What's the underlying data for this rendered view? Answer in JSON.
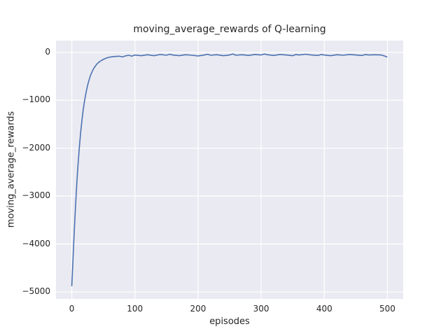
{
  "chart_data": {
    "type": "line",
    "title": "moving_average_rewards of Q-learning",
    "xlabel": "episodes",
    "ylabel": "moving_average_rewards",
    "xlim": [
      -25,
      525
    ],
    "ylim": [
      -5145,
      245
    ],
    "x_ticks": [
      0,
      100,
      200,
      300,
      400,
      500
    ],
    "y_ticks": [
      0,
      -1000,
      -2000,
      -3000,
      -4000,
      -5000
    ],
    "grid": true,
    "legend_position": "none",
    "colors": {
      "figure_background": "#ffffff",
      "plot_background": "#eaeaf2",
      "grid": "#ffffff",
      "line": "#4c72b0",
      "text": "#262626"
    },
    "series": [
      {
        "name": "moving_average_rewards",
        "color": "#4c72b0",
        "points": [
          [
            0,
            -4870
          ],
          [
            1,
            -4600
          ],
          [
            2,
            -4300
          ],
          [
            3,
            -4000
          ],
          [
            4,
            -3720
          ],
          [
            5,
            -3450
          ],
          [
            6,
            -3200
          ],
          [
            7,
            -2960
          ],
          [
            8,
            -2730
          ],
          [
            9,
            -2520
          ],
          [
            10,
            -2330
          ],
          [
            12,
            -1980
          ],
          [
            14,
            -1680
          ],
          [
            16,
            -1430
          ],
          [
            18,
            -1210
          ],
          [
            20,
            -1030
          ],
          [
            22,
            -880
          ],
          [
            24,
            -750
          ],
          [
            26,
            -640
          ],
          [
            28,
            -550
          ],
          [
            30,
            -470
          ],
          [
            33,
            -380
          ],
          [
            36,
            -310
          ],
          [
            40,
            -240
          ],
          [
            44,
            -195
          ],
          [
            48,
            -160
          ],
          [
            52,
            -135
          ],
          [
            56,
            -115
          ],
          [
            60,
            -100
          ],
          [
            65,
            -90
          ],
          [
            70,
            -85
          ],
          [
            75,
            -80
          ],
          [
            80,
            -95
          ],
          [
            85,
            -75
          ],
          [
            90,
            -60
          ],
          [
            95,
            -80
          ],
          [
            100,
            -55
          ],
          [
            110,
            -70
          ],
          [
            120,
            -50
          ],
          [
            130,
            -70
          ],
          [
            140,
            -45
          ],
          [
            150,
            -60
          ],
          [
            155,
            -40
          ],
          [
            160,
            -55
          ],
          [
            170,
            -70
          ],
          [
            180,
            -50
          ],
          [
            190,
            -60
          ],
          [
            200,
            -75
          ],
          [
            210,
            -55
          ],
          [
            215,
            -40
          ],
          [
            220,
            -60
          ],
          [
            230,
            -50
          ],
          [
            240,
            -70
          ],
          [
            250,
            -55
          ],
          [
            255,
            -35
          ],
          [
            260,
            -60
          ],
          [
            270,
            -50
          ],
          [
            280,
            -65
          ],
          [
            290,
            -45
          ],
          [
            300,
            -55
          ],
          [
            305,
            -35
          ],
          [
            310,
            -50
          ],
          [
            320,
            -65
          ],
          [
            330,
            -45
          ],
          [
            340,
            -55
          ],
          [
            350,
            -70
          ],
          [
            355,
            -45
          ],
          [
            360,
            -55
          ],
          [
            370,
            -40
          ],
          [
            380,
            -55
          ],
          [
            390,
            -65
          ],
          [
            395,
            -45
          ],
          [
            400,
            -55
          ],
          [
            410,
            -70
          ],
          [
            420,
            -50
          ],
          [
            430,
            -60
          ],
          [
            440,
            -45
          ],
          [
            450,
            -55
          ],
          [
            460,
            -65
          ],
          [
            465,
            -45
          ],
          [
            470,
            -55
          ],
          [
            480,
            -50
          ],
          [
            490,
            -55
          ],
          [
            495,
            -75
          ],
          [
            499,
            -95
          ]
        ]
      }
    ]
  }
}
